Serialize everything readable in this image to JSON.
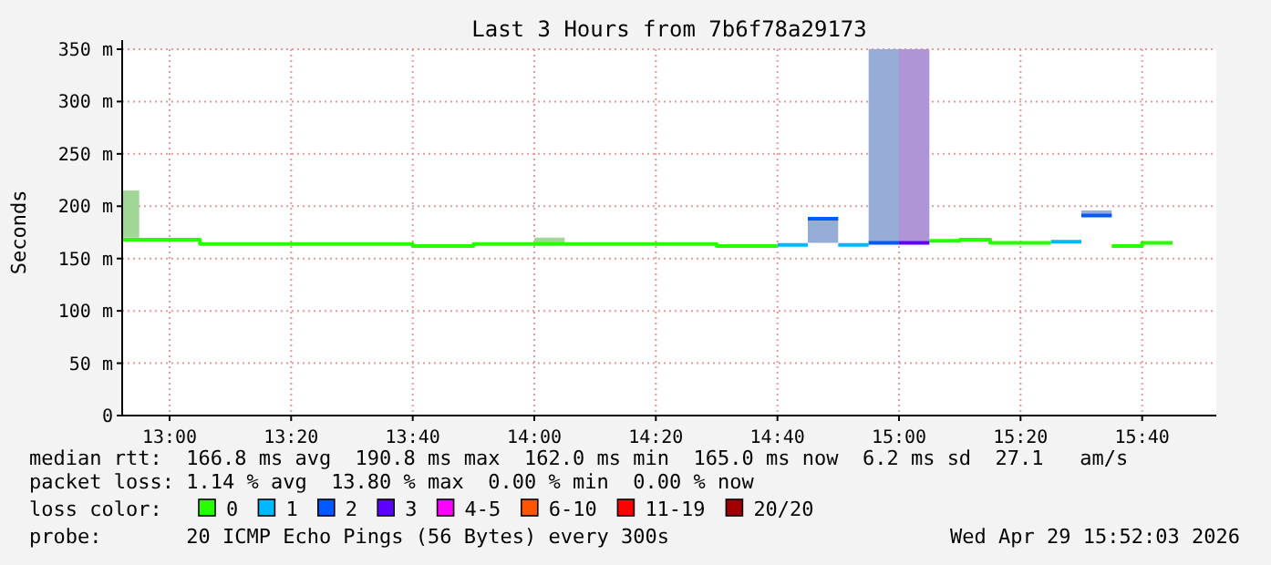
{
  "chart_data": {
    "type": "step",
    "title": "Last 3 Hours from 7b6f78a29173",
    "ylabel": "Seconds",
    "xlim": [
      12.87,
      15.87
    ],
    "xticks": [
      {
        "value": 13,
        "label": "13:00"
      },
      {
        "value": 13.3333,
        "label": "13:20"
      },
      {
        "value": 13.6667,
        "label": "13:40"
      },
      {
        "value": 14,
        "label": "14:00"
      },
      {
        "value": 14.3333,
        "label": "14:20"
      },
      {
        "value": 14.6667,
        "label": "14:40"
      },
      {
        "value": 15,
        "label": "15:00"
      },
      {
        "value": 15.3333,
        "label": "15:20"
      },
      {
        "value": 15.6667,
        "label": "15:40"
      }
    ],
    "ylim": [
      0,
      350
    ],
    "yticks": [
      0,
      {
        "value": 50,
        "label": "50 m"
      },
      {
        "value": 100,
        "label": "100 m"
      },
      {
        "value": 150,
        "label": "150 m"
      },
      {
        "value": 200,
        "label": "200 m"
      },
      {
        "value": 250,
        "label": "250 m"
      },
      {
        "value": 300,
        "label": "300 m"
      },
      {
        "value": 350,
        "label": "350 m"
      }
    ],
    "grid": true,
    "legend": "bottom",
    "legend_title": "loss color:",
    "series": [
      {
        "name": "0",
        "color": "#26ff00",
        "x": [
          12.87,
          12.9167,
          13.0833,
          13.6667,
          13.8333,
          14.0,
          14.0833,
          14.5,
          14.6667,
          null,
          15.0833,
          15.1667,
          15.25,
          15.4167,
          null,
          15.5833,
          15.6667,
          15.75
        ],
        "values": [
          168,
          168,
          164,
          162,
          164,
          164,
          164,
          162,
          162,
          null,
          167,
          168,
          165,
          165,
          null,
          162,
          165,
          165
        ],
        "lower": [
          170,
          170,
          null,
          null,
          null,
          165,
          165,
          null,
          null,
          null,
          null,
          null,
          null,
          null,
          null,
          null,
          null,
          null
        ],
        "upper": [
          215,
          215,
          null,
          null,
          null,
          170,
          170,
          null,
          null,
          null,
          null,
          null,
          null,
          null,
          null,
          null,
          null,
          null
        ]
      },
      {
        "name": "1",
        "color": "#00b8ff",
        "x": [
          14.6667,
          14.75,
          null,
          14.8333,
          14.9167,
          null,
          15.4167,
          15.5
        ],
        "values": [
          163,
          163,
          null,
          163,
          163,
          null,
          166,
          166
        ]
      },
      {
        "name": "2",
        "color": "#0059ff",
        "x": [
          14.75,
          14.8333,
          null,
          14.9167,
          15.0,
          null,
          15.5,
          15.5833
        ],
        "values": [
          188,
          188,
          null,
          165,
          165,
          null,
          191,
          191
        ],
        "lower": [
          165,
          165,
          null,
          165,
          165,
          null,
          190,
          190
        ],
        "upper": [
          188,
          188,
          null,
          350,
          350,
          null,
          196,
          196
        ]
      },
      {
        "name": "3",
        "color": "#5e00ff",
        "x": [
          15.0,
          15.0833
        ],
        "values": [
          165,
          165
        ],
        "lower": [
          165,
          165
        ],
        "upper": [
          350,
          350
        ]
      },
      {
        "name": "4-5",
        "color": "#ff00ff"
      },
      {
        "name": "6-10",
        "color": "#ff5500"
      },
      {
        "name": "11-19",
        "color": "#ff0000"
      },
      {
        "name": "20/20",
        "color": "#a10000"
      }
    ],
    "annotations": [
      "median rtt:  166.8 ms avg  190.8 ms max  162.0 ms min  165.0 ms now  6.2 ms sd  27.1   am/s",
      "packet loss: 1.14 % avg  13.80 % max  0.00 % min  0.00 % now",
      "probe:       20 ICMP Echo Pings (56 Bytes) every 300s",
      "Wed Apr 29 15:52:03 2026"
    ]
  }
}
